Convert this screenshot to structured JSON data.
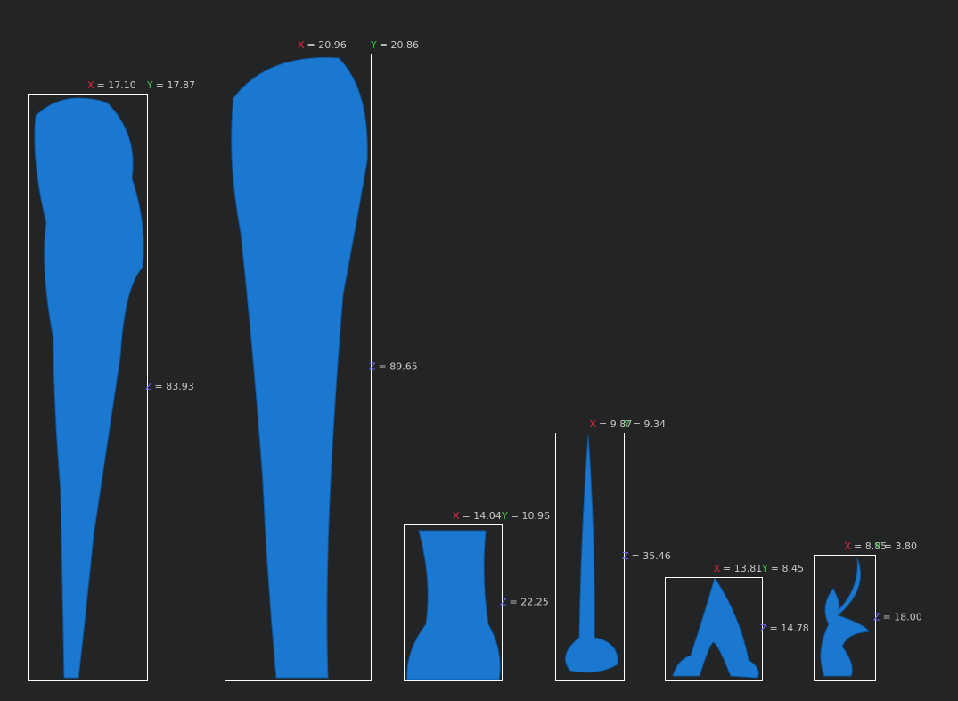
{
  "axes": {
    "x": "X",
    "y": "Y",
    "z": "Z"
  },
  "objects": [
    {
      "x": "= 17.10",
      "y": "= 17.87",
      "z": "= 83.93"
    },
    {
      "x": "= 20.96",
      "y": "= 20.86",
      "z": "= 89.65"
    },
    {
      "x": "= 14.04",
      "y": "= 10.96",
      "z": "= 22.25"
    },
    {
      "x": "= 9.87",
      "y": "= 9.34",
      "z": "= 35.46"
    },
    {
      "x": "= 13.81",
      "y": "= 8.45",
      "z": "= 14.78"
    },
    {
      "x": "= 8.85",
      "y": "= 3.80",
      "z": "= 18.00"
    }
  ]
}
